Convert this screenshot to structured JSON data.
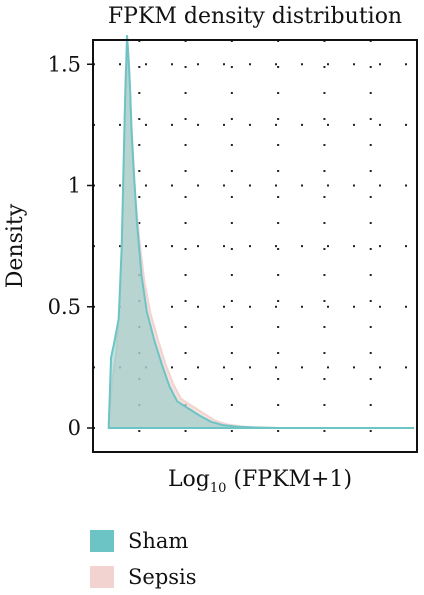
{
  "chart_data": {
    "type": "area",
    "title": "FPKM density distribution",
    "xlabel_main": "Log",
    "xlabel_sub": "10",
    "xlabel_rest": " (FPKM+1)",
    "ylabel": "Density",
    "ylim": [
      0,
      1.6
    ],
    "xlim": [
      0,
      4
    ],
    "y_ticks": [
      {
        "value": 0,
        "label": "0"
      },
      {
        "value": 0.5,
        "label": "0.5"
      },
      {
        "value": 1,
        "label": "1"
      },
      {
        "value": 1.5,
        "label": "1.5"
      }
    ],
    "grid": "dotted",
    "legend_position": "bottom",
    "series": [
      {
        "name": "Sham",
        "color": "#6cc5c4",
        "x": [
          0.05,
          0.08,
          0.12,
          0.18,
          0.22,
          0.26,
          0.29,
          0.31,
          0.33,
          0.35,
          0.38,
          0.42,
          0.48,
          0.55,
          0.65,
          0.75,
          0.85,
          0.95,
          1.1,
          1.25,
          1.4,
          1.55,
          1.75,
          2.0,
          2.3
        ],
        "y": [
          0.02,
          0.29,
          0.35,
          0.45,
          0.75,
          1.3,
          1.62,
          1.52,
          1.4,
          1.22,
          1.05,
          0.85,
          0.63,
          0.48,
          0.36,
          0.26,
          0.17,
          0.11,
          0.08,
          0.05,
          0.025,
          0.012,
          0.005,
          0.002,
          0.0
        ]
      },
      {
        "name": "Sepsis",
        "color": "#f2d3cf",
        "x": [
          0.05,
          0.1,
          0.15,
          0.2,
          0.24,
          0.27,
          0.3,
          0.32,
          0.34,
          0.37,
          0.4,
          0.45,
          0.52,
          0.6,
          0.7,
          0.8,
          0.9,
          1.0,
          1.15,
          1.3,
          1.45,
          1.6,
          1.8,
          2.0,
          2.3
        ],
        "y": [
          0.02,
          0.2,
          0.32,
          0.55,
          0.95,
          1.45,
          1.58,
          1.48,
          1.3,
          1.12,
          0.95,
          0.78,
          0.6,
          0.47,
          0.36,
          0.26,
          0.18,
          0.12,
          0.09,
          0.06,
          0.03,
          0.015,
          0.006,
          0.002,
          0.0
        ]
      }
    ]
  }
}
